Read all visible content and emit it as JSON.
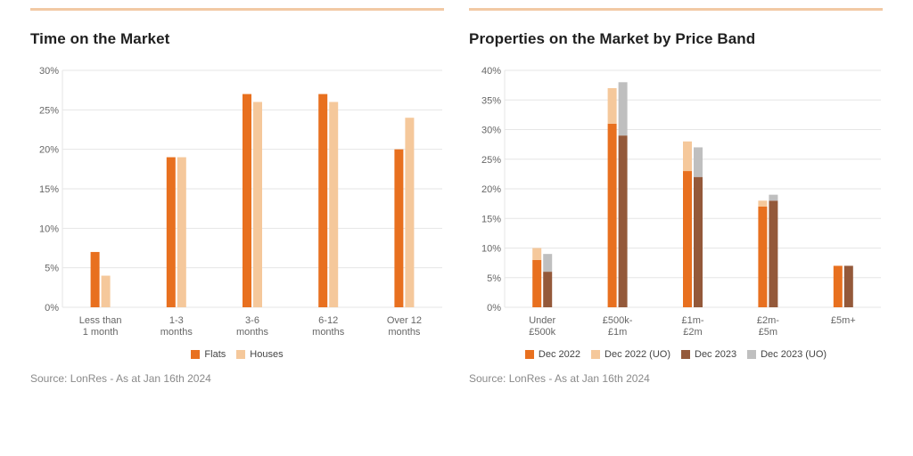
{
  "colors": {
    "accent": "#f2c9a4",
    "flats": "#e8701f",
    "houses": "#f5c89b",
    "dec2022": "#e8701f",
    "dec2022_uo": "#f5c89b",
    "dec2023": "#94593a",
    "dec2023_uo": "#bfbfbf",
    "grid": "#e6e6e6",
    "axis_text": "#666666"
  },
  "left_chart": {
    "title": "Time on the Market",
    "source": "Source: LonRes - As at Jan 16th 2024",
    "chart_data": {
      "type": "bar",
      "title": "Time on the Market",
      "categories": [
        [
          "Less than",
          "1 month"
        ],
        [
          "1-3",
          "months"
        ],
        [
          "3-6",
          "months"
        ],
        [
          "6-12",
          "months"
        ],
        [
          "Over 12",
          "months"
        ]
      ],
      "series": [
        {
          "name": "Flats",
          "values": [
            7,
            19,
            27,
            27,
            20
          ]
        },
        {
          "name": "Houses",
          "values": [
            4,
            19,
            26,
            26,
            24
          ]
        }
      ],
      "ylim": [
        0,
        30
      ],
      "yticks": [
        0,
        5,
        10,
        15,
        20,
        25,
        30
      ],
      "ytick_labels": [
        "0%",
        "5%",
        "10%",
        "15%",
        "20%",
        "25%",
        "30%"
      ],
      "grid": true,
      "legend": "bottom"
    }
  },
  "right_chart": {
    "title": "Properties on the Market by Price Band",
    "source": "Source: LonRes - As at Jan 16th 2024",
    "chart_data": {
      "type": "bar",
      "stacked": true,
      "title": "Properties on the Market by Price Band",
      "categories": [
        [
          "Under",
          "£500k"
        ],
        [
          "£500k-",
          "£1m"
        ],
        [
          "£1m-",
          "£2m"
        ],
        [
          "£2m-",
          "£5m"
        ],
        [
          "£5m+"
        ]
      ],
      "series": [
        {
          "name": "Dec 2022",
          "group": "Dec 2022",
          "values": [
            8,
            31,
            23,
            17,
            7
          ]
        },
        {
          "name": "Dec 2022 (UO)",
          "group": "Dec 2022",
          "values": [
            2,
            6,
            5,
            1,
            0
          ]
        },
        {
          "name": "Dec 2023",
          "group": "Dec 2023",
          "values": [
            6,
            29,
            22,
            18,
            7
          ]
        },
        {
          "name": "Dec 2023 (UO)",
          "group": "Dec 2023",
          "values": [
            3,
            9,
            5,
            1,
            0
          ]
        }
      ],
      "ylim": [
        0,
        40
      ],
      "yticks": [
        0,
        5,
        10,
        15,
        20,
        25,
        30,
        35,
        40
      ],
      "ytick_labels": [
        "0%",
        "5%",
        "10%",
        "15%",
        "20%",
        "25%",
        "30%",
        "35%",
        "40%"
      ],
      "grid": true,
      "legend": "bottom"
    }
  }
}
